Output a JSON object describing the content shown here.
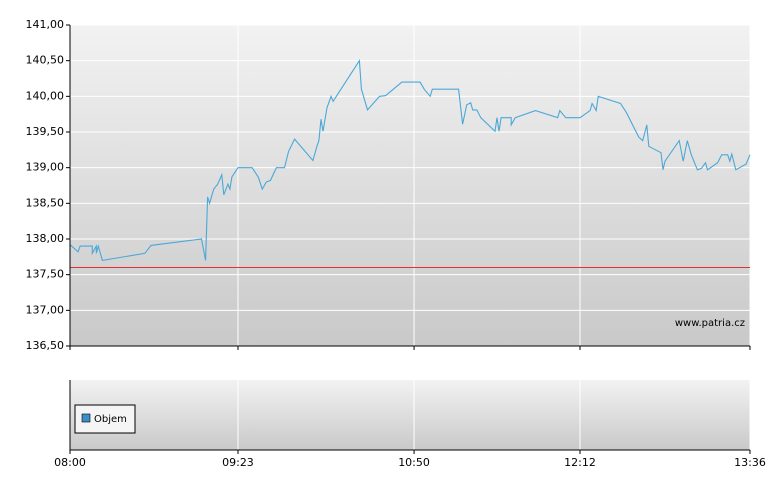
{
  "chart_data": [
    {
      "type": "line",
      "x": [
        "08:00",
        "08:04",
        "08:05",
        "08:11",
        "08:11",
        "08:13",
        "08:13",
        "08:14",
        "08:16",
        "08:37",
        "08:40",
        "09:05",
        "09:07",
        "09:08",
        "09:09",
        "09:11",
        "09:13",
        "09:15",
        "09:16",
        "09:18",
        "09:19",
        "09:20",
        "09:23",
        "09:30",
        "09:33",
        "09:35",
        "09:37",
        "09:39",
        "09:42",
        "09:46",
        "09:48",
        "09:51",
        "10:00",
        "10:02",
        "10:03",
        "10:04",
        "10:05",
        "10:07",
        "10:09",
        "10:10",
        "10:23",
        "10:24",
        "10:27",
        "10:33",
        "10:36",
        "10:44",
        "10:53",
        "10:55",
        "10:58",
        "10:59",
        "11:12",
        "11:14",
        "11:16",
        "11:18",
        "11:19",
        "11:21",
        "11:23",
        "11:30",
        "11:31",
        "11:32",
        "11:33",
        "11:38",
        "11:38",
        "11:40",
        "11:50",
        "12:01",
        "12:02",
        "12:05",
        "12:12",
        "12:17",
        "12:18",
        "12:20",
        "12:21",
        "12:32",
        "12:35",
        "12:41",
        "12:43",
        "12:45",
        "12:46",
        "12:52",
        "12:53",
        "12:54",
        "13:01",
        "13:03",
        "13:05",
        "13:07",
        "13:10",
        "13:12",
        "13:14",
        "13:15",
        "13:20",
        "13:22",
        "13:25",
        "13:26",
        "13:27",
        "13:29",
        "13:34",
        "13:36"
      ],
      "series": [
        {
          "color": "#4aa8d8",
          "values": [
            137.92,
            137.82,
            137.9,
            137.9,
            137.8,
            137.9,
            137.8,
            137.9,
            137.7,
            137.8,
            137.91,
            138.0,
            137.7,
            138.59,
            138.5,
            138.7,
            138.77,
            138.9,
            138.62,
            138.77,
            138.7,
            138.87,
            139.0,
            139.0,
            138.87,
            138.7,
            138.8,
            138.82,
            139.0,
            139.0,
            139.23,
            139.4,
            139.1,
            139.3,
            139.38,
            139.68,
            139.51,
            139.84,
            140.0,
            139.93,
            140.5,
            140.1,
            139.81,
            140.0,
            140.01,
            140.2,
            140.2,
            140.1,
            140.0,
            140.1,
            140.1,
            139.61,
            139.88,
            139.91,
            139.81,
            139.81,
            139.7,
            139.51,
            139.7,
            139.51,
            139.7,
            139.7,
            139.6,
            139.7,
            139.8,
            139.7,
            139.8,
            139.7,
            139.7,
            139.8,
            139.9,
            139.8,
            140.0,
            139.9,
            139.77,
            139.43,
            139.38,
            139.6,
            139.3,
            139.21,
            138.97,
            139.09,
            139.38,
            139.09,
            139.38,
            139.18,
            138.97,
            138.99,
            139.07,
            138.97,
            139.07,
            139.18,
            139.18,
            139.09,
            139.19,
            138.97,
            139.05,
            139.18
          ]
        }
      ],
      "reference_line": {
        "value": 137.6,
        "color": "#e03030"
      },
      "xlim": [
        "08:00",
        "13:36"
      ],
      "xticks": [
        "08:00",
        "09:23",
        "10:50",
        "12:12",
        "13:36"
      ],
      "ylim": [
        136.5,
        141
      ],
      "yticks": [
        {
          "value": 136.5,
          "label": "136,50"
        },
        {
          "value": 137,
          "label": "137,00"
        },
        {
          "value": 137.5,
          "label": "137,50"
        },
        {
          "value": 138,
          "label": "138,00"
        },
        {
          "value": 138.5,
          "label": "138,50"
        },
        {
          "value": 139,
          "label": "139,00"
        },
        {
          "value": 139.5,
          "label": "139,50"
        },
        {
          "value": 140,
          "label": "140,00"
        },
        {
          "value": 140.5,
          "label": "140,50"
        },
        {
          "value": 141,
          "label": "141,00"
        }
      ],
      "grid": true,
      "annotation": "www.patria.cz"
    },
    {
      "type": "bar",
      "series": [
        {
          "name": "Objem",
          "color": "#3a8fc8",
          "values": []
        }
      ]
    }
  ]
}
